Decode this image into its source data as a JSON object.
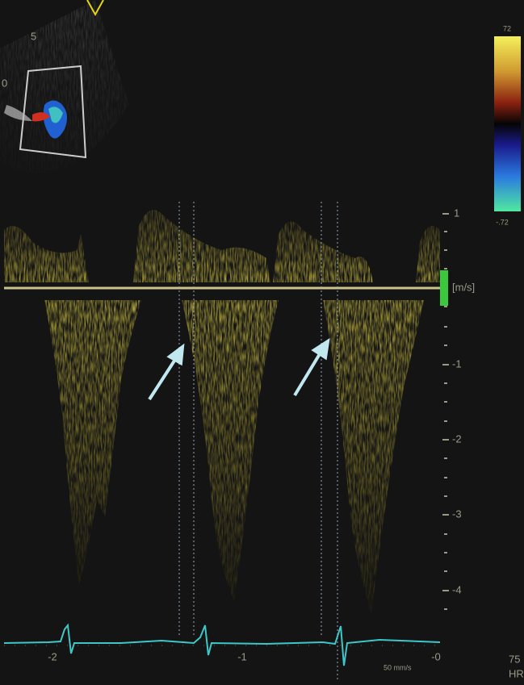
{
  "sector": {
    "depth_labels": [
      "5",
      "0"
    ]
  },
  "color_scale": {
    "max": "72",
    "min": "-.72"
  },
  "velocity_scale": {
    "unit": "[m/s]",
    "labels": [
      "1",
      "-1",
      "-2",
      "-3",
      "-4"
    ]
  },
  "time_axis": {
    "labels": [
      "-2",
      "-1",
      "-0"
    ],
    "sweep_speed": "50 mm/s"
  },
  "heart_rate": {
    "value": "75",
    "label": "HR"
  }
}
